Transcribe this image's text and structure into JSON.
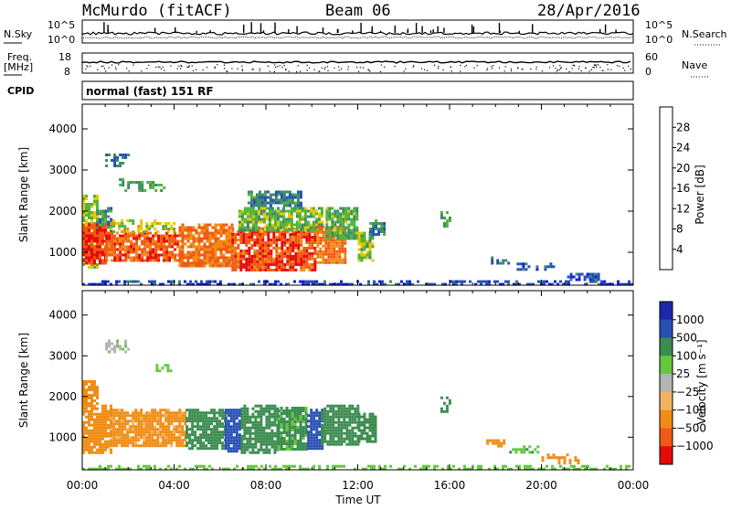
{
  "header": {
    "station": "McMurdo (fitACF)",
    "beam": "Beam 06",
    "date": "28/Apr/2016"
  },
  "strip_noise": {
    "left_label": "N.Sky",
    "left_ticks": [
      "10^5",
      "10^0"
    ],
    "right_label": "N.Search",
    "right_ticks": [
      "10^5",
      "10^0"
    ]
  },
  "strip_freq": {
    "left_label_line1": "Freq.",
    "left_label_line2": "[MHz]",
    "left_ticks": [
      "18",
      "8"
    ],
    "right_label": "Nave",
    "right_ticks": [
      "60",
      "0"
    ]
  },
  "strip_cpid": {
    "label": "CPID",
    "text": "normal (fast) 151 RF"
  },
  "x_axis": {
    "label": "Time UT",
    "ticks": [
      "00:00",
      "04:00",
      "08:00",
      "12:00",
      "16:00",
      "20:00",
      "00:00"
    ]
  },
  "colors": {
    "power": [
      "#0a1ee6",
      "#2850b4",
      "#3c8c64",
      "#50b43c",
      "#e6c800",
      "#f08c14",
      "#f05a14",
      "#e60a0a"
    ],
    "velocity": [
      "#e60a0a",
      "#f05a14",
      "#f08c14",
      "#f0b464",
      "#b4b4b4",
      "#64c83c",
      "#3c8c50",
      "#2850b4",
      "#1e28aa"
    ]
  },
  "chart_data": [
    {
      "type": "heatmap",
      "name": "power",
      "ylabel": "Slant Range [km]",
      "yticks": [
        1000,
        2000,
        3000,
        4000
      ],
      "ylim": [
        200,
        4600
      ],
      "xlim_hours": [
        0,
        24
      ],
      "colorbar": {
        "label": "Power [dB]",
        "ticks": [
          "4",
          "8",
          "12",
          "16",
          "20",
          "24",
          "28"
        ],
        "range": [
          0,
          32
        ]
      },
      "regions": [
        {
          "x": [
            0.0,
            0.6
          ],
          "y": [
            600,
            2400
          ],
          "v": 16
        },
        {
          "x": [
            0.6,
            1.3
          ],
          "y": [
            1500,
            2100
          ],
          "v": 10
        },
        {
          "x": [
            1.0,
            2.0
          ],
          "y": [
            3100,
            3400
          ],
          "v": 8
        },
        {
          "x": [
            1.6,
            3.6
          ],
          "y": [
            2500,
            2800
          ],
          "v": 12
        },
        {
          "x": [
            0.0,
            1.0
          ],
          "y": [
            700,
            1700
          ],
          "v": 28
        },
        {
          "x": [
            1.0,
            4.2
          ],
          "y": [
            800,
            1500
          ],
          "v": 26
        },
        {
          "x": [
            1.2,
            4.0
          ],
          "y": [
            1500,
            1800
          ],
          "v": 18
        },
        {
          "x": [
            4.2,
            6.5
          ],
          "y": [
            650,
            1700
          ],
          "v": 24
        },
        {
          "x": [
            6.5,
            10.2
          ],
          "y": [
            550,
            1600
          ],
          "v": 27
        },
        {
          "x": [
            6.8,
            10.5
          ],
          "y": [
            1500,
            2100
          ],
          "v": 14
        },
        {
          "x": [
            7.2,
            9.5
          ],
          "y": [
            2100,
            2500
          ],
          "v": 9
        },
        {
          "x": [
            10.2,
            11.5
          ],
          "y": [
            750,
            1650
          ],
          "v": 24
        },
        {
          "x": [
            10.6,
            12.0
          ],
          "y": [
            1300,
            2100
          ],
          "v": 13
        },
        {
          "x": [
            12.0,
            12.7
          ],
          "y": [
            800,
            1500
          ],
          "v": 15
        },
        {
          "x": [
            12.5,
            13.2
          ],
          "y": [
            1400,
            1800
          ],
          "v": 9
        },
        {
          "x": [
            15.6,
            16.0
          ],
          "y": [
            1650,
            2000
          ],
          "v": 12
        },
        {
          "x": [
            17.8,
            18.6
          ],
          "y": [
            700,
            900
          ],
          "v": 8
        },
        {
          "x": [
            18.8,
            20.6
          ],
          "y": [
            550,
            750
          ],
          "v": 7
        },
        {
          "x": [
            21.0,
            22.5
          ],
          "y": [
            300,
            500
          ],
          "v": 6
        },
        {
          "x": [
            0.0,
            24.0
          ],
          "y": [
            200,
            320
          ],
          "v": 5
        }
      ]
    },
    {
      "type": "heatmap",
      "name": "velocity",
      "ylabel": "Slant Range [km]",
      "yticks": [
        1000,
        2000,
        3000,
        4000
      ],
      "ylim": [
        200,
        4600
      ],
      "xlim_hours": [
        0,
        24
      ],
      "colorbar": {
        "label": "Velocity [m s⁻¹]",
        "ticks": [
          "1000",
          "500",
          "100",
          "25",
          "−25",
          "−100",
          "−500",
          "−1000"
        ]
      },
      "regions": [
        {
          "x": [
            0.0,
            0.6
          ],
          "y": [
            1800,
            2400
          ],
          "v": -300
        },
        {
          "x": [
            0.0,
            1.2
          ],
          "y": [
            600,
            1800
          ],
          "v": -150
        },
        {
          "x": [
            1.2,
            4.5
          ],
          "y": [
            800,
            1700
          ],
          "v": -120
        },
        {
          "x": [
            3.2,
            3.8
          ],
          "y": [
            2600,
            2800
          ],
          "v": 60
        },
        {
          "x": [
            1.0,
            2.0
          ],
          "y": [
            3100,
            3400
          ],
          "v": 10
        },
        {
          "x": [
            4.5,
            6.2
          ],
          "y": [
            700,
            1700
          ],
          "v": 150
        },
        {
          "x": [
            6.2,
            6.9
          ],
          "y": [
            650,
            1700
          ],
          "v": 700
        },
        {
          "x": [
            6.9,
            8.5
          ],
          "y": [
            650,
            1800
          ],
          "v": 200
        },
        {
          "x": [
            8.5,
            9.8
          ],
          "y": [
            700,
            1750
          ],
          "v": 120
        },
        {
          "x": [
            9.8,
            10.4
          ],
          "y": [
            700,
            1700
          ],
          "v": 600
        },
        {
          "x": [
            10.4,
            12.0
          ],
          "y": [
            800,
            1800
          ],
          "v": 300
        },
        {
          "x": [
            12.0,
            12.8
          ],
          "y": [
            900,
            1600
          ],
          "v": 150
        },
        {
          "x": [
            15.6,
            16.0
          ],
          "y": [
            1650,
            2000
          ],
          "v": 200
        },
        {
          "x": [
            17.6,
            18.4
          ],
          "y": [
            800,
            950
          ],
          "v": -150
        },
        {
          "x": [
            18.6,
            19.8
          ],
          "y": [
            600,
            800
          ],
          "v": 80
        },
        {
          "x": [
            20.0,
            21.6
          ],
          "y": [
            350,
            600
          ],
          "v": -250
        },
        {
          "x": [
            0.0,
            24.0
          ],
          "y": [
            200,
            320
          ],
          "v": 60
        }
      ]
    }
  ]
}
